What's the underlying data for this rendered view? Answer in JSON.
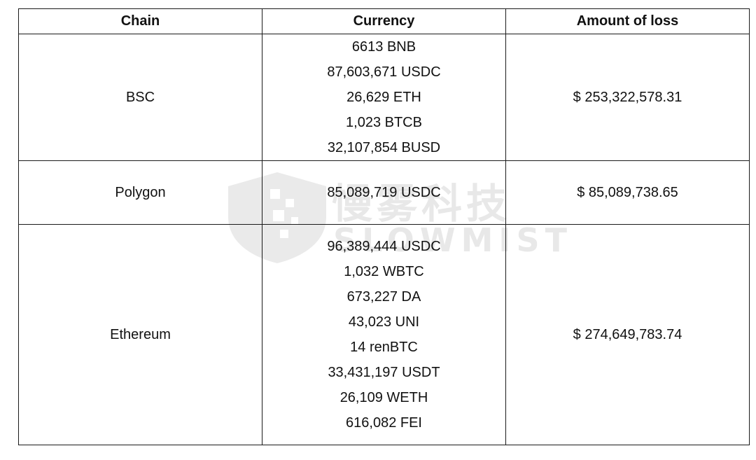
{
  "table": {
    "headers": {
      "chain": "Chain",
      "currency": "Currency",
      "amount": "Amount of loss"
    },
    "rows": [
      {
        "chain": "BSC",
        "currencies": [
          "6613 BNB",
          "87,603,671 USDC",
          "26,629 ETH",
          "1,023 BTCB",
          "32,107,854 BUSD"
        ],
        "amount": "$ 253,322,578.31"
      },
      {
        "chain": "Polygon",
        "currencies": [
          "85,089,719 USDC"
        ],
        "amount": "$ 85,089,738.65"
      },
      {
        "chain": "Ethereum",
        "currencies": [
          "96,389,444 USDC",
          "1,032 WBTC",
          "673,227 DA",
          "43,023 UNI",
          "14 renBTC",
          "33,431,197 USDT",
          "26,109 WETH",
          "616,082 FEI"
        ],
        "amount": "$ 274,649,783.74"
      }
    ]
  },
  "watermark": {
    "cn_text": "慢雾科技",
    "en_text": "SLOWMIST",
    "icon": "shield-logo-icon"
  }
}
